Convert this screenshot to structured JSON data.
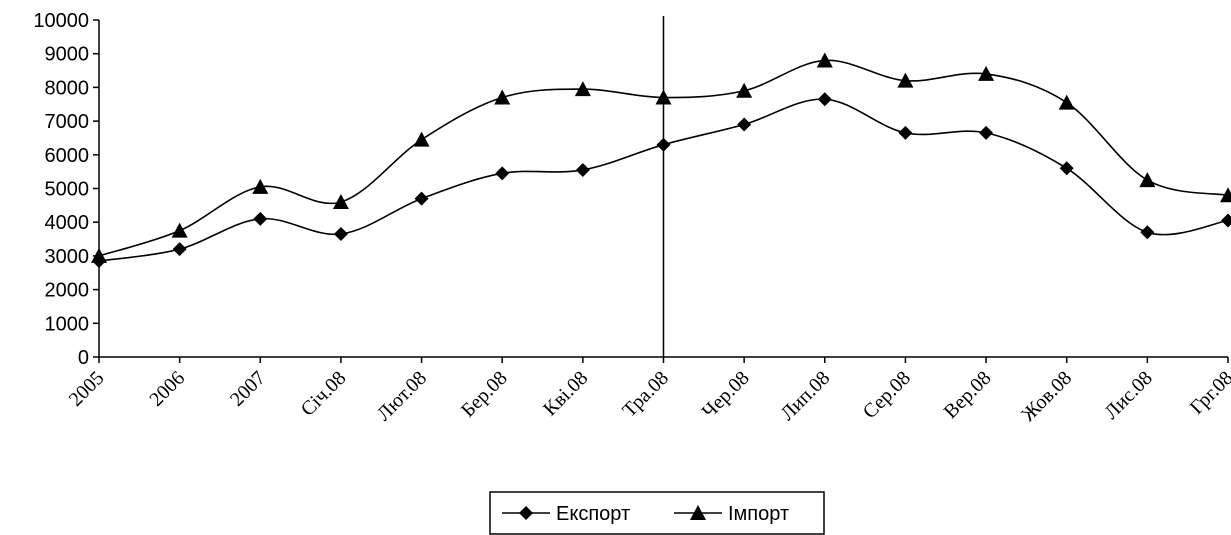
{
  "chart_data": {
    "type": "line",
    "categories": [
      "2005",
      "2006",
      "2007",
      "Січ.08",
      "Лют.08",
      "Бер.08",
      "Кві.08",
      "Тра.08",
      "Чер.08",
      "Лип.08",
      "Сер.08",
      "Вер.08",
      "Жов.08",
      "Лис.08",
      "Грг.08"
    ],
    "series": [
      {
        "name": "Експорт",
        "marker": "diamond",
        "values": [
          2850,
          3200,
          4100,
          3650,
          4700,
          5450,
          5550,
          6300,
          6900,
          7650,
          6650,
          6650,
          5600,
          3700,
          4050
        ]
      },
      {
        "name": "Імпорт",
        "marker": "triangle",
        "values": [
          3000,
          3750,
          5050,
          4600,
          6450,
          7700,
          7950,
          7700,
          7900,
          8800,
          8200,
          8400,
          7550,
          5250,
          4800
        ]
      }
    ],
    "ylim": [
      0,
      10000
    ],
    "yticks": [
      "0",
      "1000",
      "2000",
      "3000",
      "4000",
      "5000",
      "6000",
      "7000",
      "8000",
      "9000",
      "10000"
    ],
    "vertical_line_at": "Тра.08",
    "grid": false,
    "legend_position": "bottom",
    "line_color": "#000000",
    "smooth": true
  }
}
